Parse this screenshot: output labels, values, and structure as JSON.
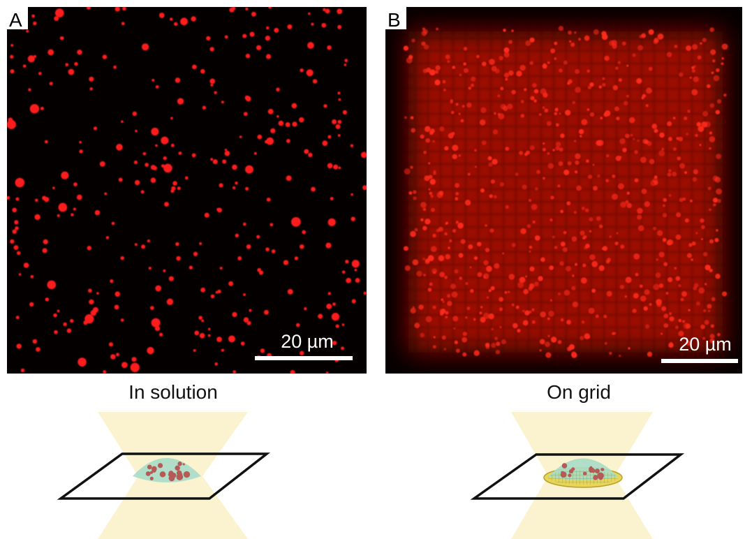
{
  "panels": [
    {
      "label": "A",
      "scale_bar": "20 µm",
      "caption": "In solution"
    },
    {
      "label": "B",
      "scale_bar": "20 µm",
      "caption": "On grid"
    }
  ]
}
